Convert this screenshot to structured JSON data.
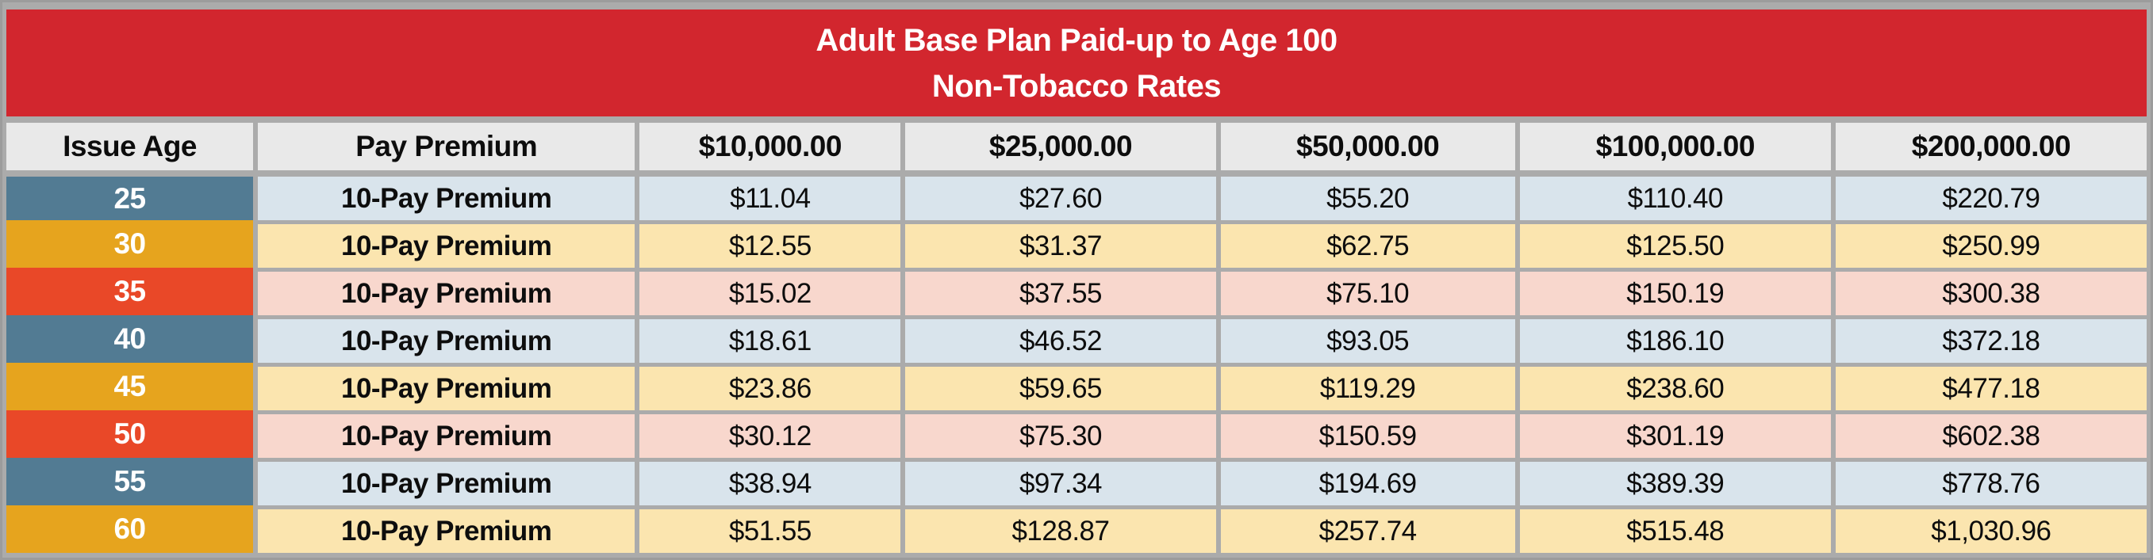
{
  "title": {
    "line1": "Adult Base Plan Paid-up to Age 100",
    "line2": "Non-Tobacco Rates"
  },
  "table": {
    "columns": [
      "Issue Age",
      "Pay Premium",
      "$10,000.00",
      "$25,000.00",
      "$50,000.00",
      "$100,000.00",
      "$200,000.00"
    ],
    "rows": [
      {
        "age": "25",
        "premium_type": "10-Pay Premium",
        "theme": "blue",
        "values": [
          "$11.04",
          "$27.60",
          "$55.20",
          "$110.40",
          "$220.79"
        ]
      },
      {
        "age": "30",
        "premium_type": "10-Pay Premium",
        "theme": "gold",
        "values": [
          "$12.55",
          "$31.37",
          "$62.75",
          "$125.50",
          "$250.99"
        ]
      },
      {
        "age": "35",
        "premium_type": "10-Pay Premium",
        "theme": "vermilion",
        "values": [
          "$15.02",
          "$37.55",
          "$75.10",
          "$150.19",
          "$300.38"
        ]
      },
      {
        "age": "40",
        "premium_type": "10-Pay Premium",
        "theme": "blue",
        "values": [
          "$18.61",
          "$46.52",
          "$93.05",
          "$186.10",
          "$372.18"
        ]
      },
      {
        "age": "45",
        "premium_type": "10-Pay Premium",
        "theme": "gold",
        "values": [
          "$23.86",
          "$59.65",
          "$119.29",
          "$238.60",
          "$477.18"
        ]
      },
      {
        "age": "50",
        "premium_type": "10-Pay Premium",
        "theme": "vermilion",
        "values": [
          "$30.12",
          "$75.30",
          "$150.59",
          "$301.19",
          "$602.38"
        ]
      },
      {
        "age": "55",
        "premium_type": "10-Pay Premium",
        "theme": "blue",
        "values": [
          "$38.94",
          "$97.34",
          "$194.69",
          "$389.39",
          "$778.76"
        ]
      },
      {
        "age": "60",
        "premium_type": "10-Pay Premium",
        "theme": "gold",
        "values": [
          "$51.55",
          "$128.87",
          "$257.74",
          "$515.48",
          "$1,030.96"
        ]
      }
    ]
  },
  "colors": {
    "banner_red": "#D2262E",
    "frame_gray": "#ABABAB",
    "frame_edge": "#9C9C9C",
    "header_gray": "#E9E9E9",
    "age_blue": "#527B93",
    "age_gold": "#E6A41E",
    "age_vermilion": "#E94828",
    "row_blue": "#D9E4EC",
    "row_gold": "#FBE5AF",
    "row_vermilion": "#F8D7CD"
  }
}
